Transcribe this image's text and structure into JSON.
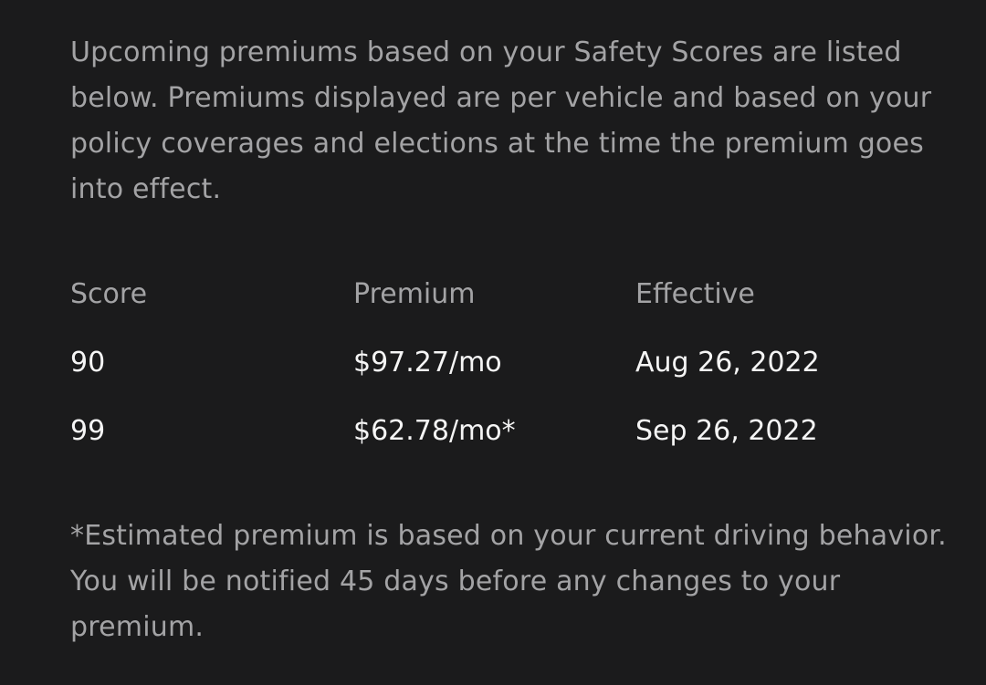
{
  "intro": "Upcoming premiums based on your Safety Scores are listed below. Premiums displayed are per vehicle and based on your policy coverages and elections at the time the premium goes into effect.",
  "table": {
    "headers": [
      "Score",
      "Premium",
      "Effective"
    ],
    "rows": [
      [
        "90",
        "$97.27/mo",
        "Aug 26, 2022"
      ],
      [
        "99",
        "$62.78/mo*",
        "Sep 26, 2022"
      ]
    ]
  },
  "footnote": "*Estimated premium is based on your current driving behavior. You will be notified 45 days before any changes to your premium.",
  "colors": {
    "background": "#1b1b1c",
    "secondary_text": "#a3a3a5",
    "primary_text": "#f5f5f5"
  }
}
